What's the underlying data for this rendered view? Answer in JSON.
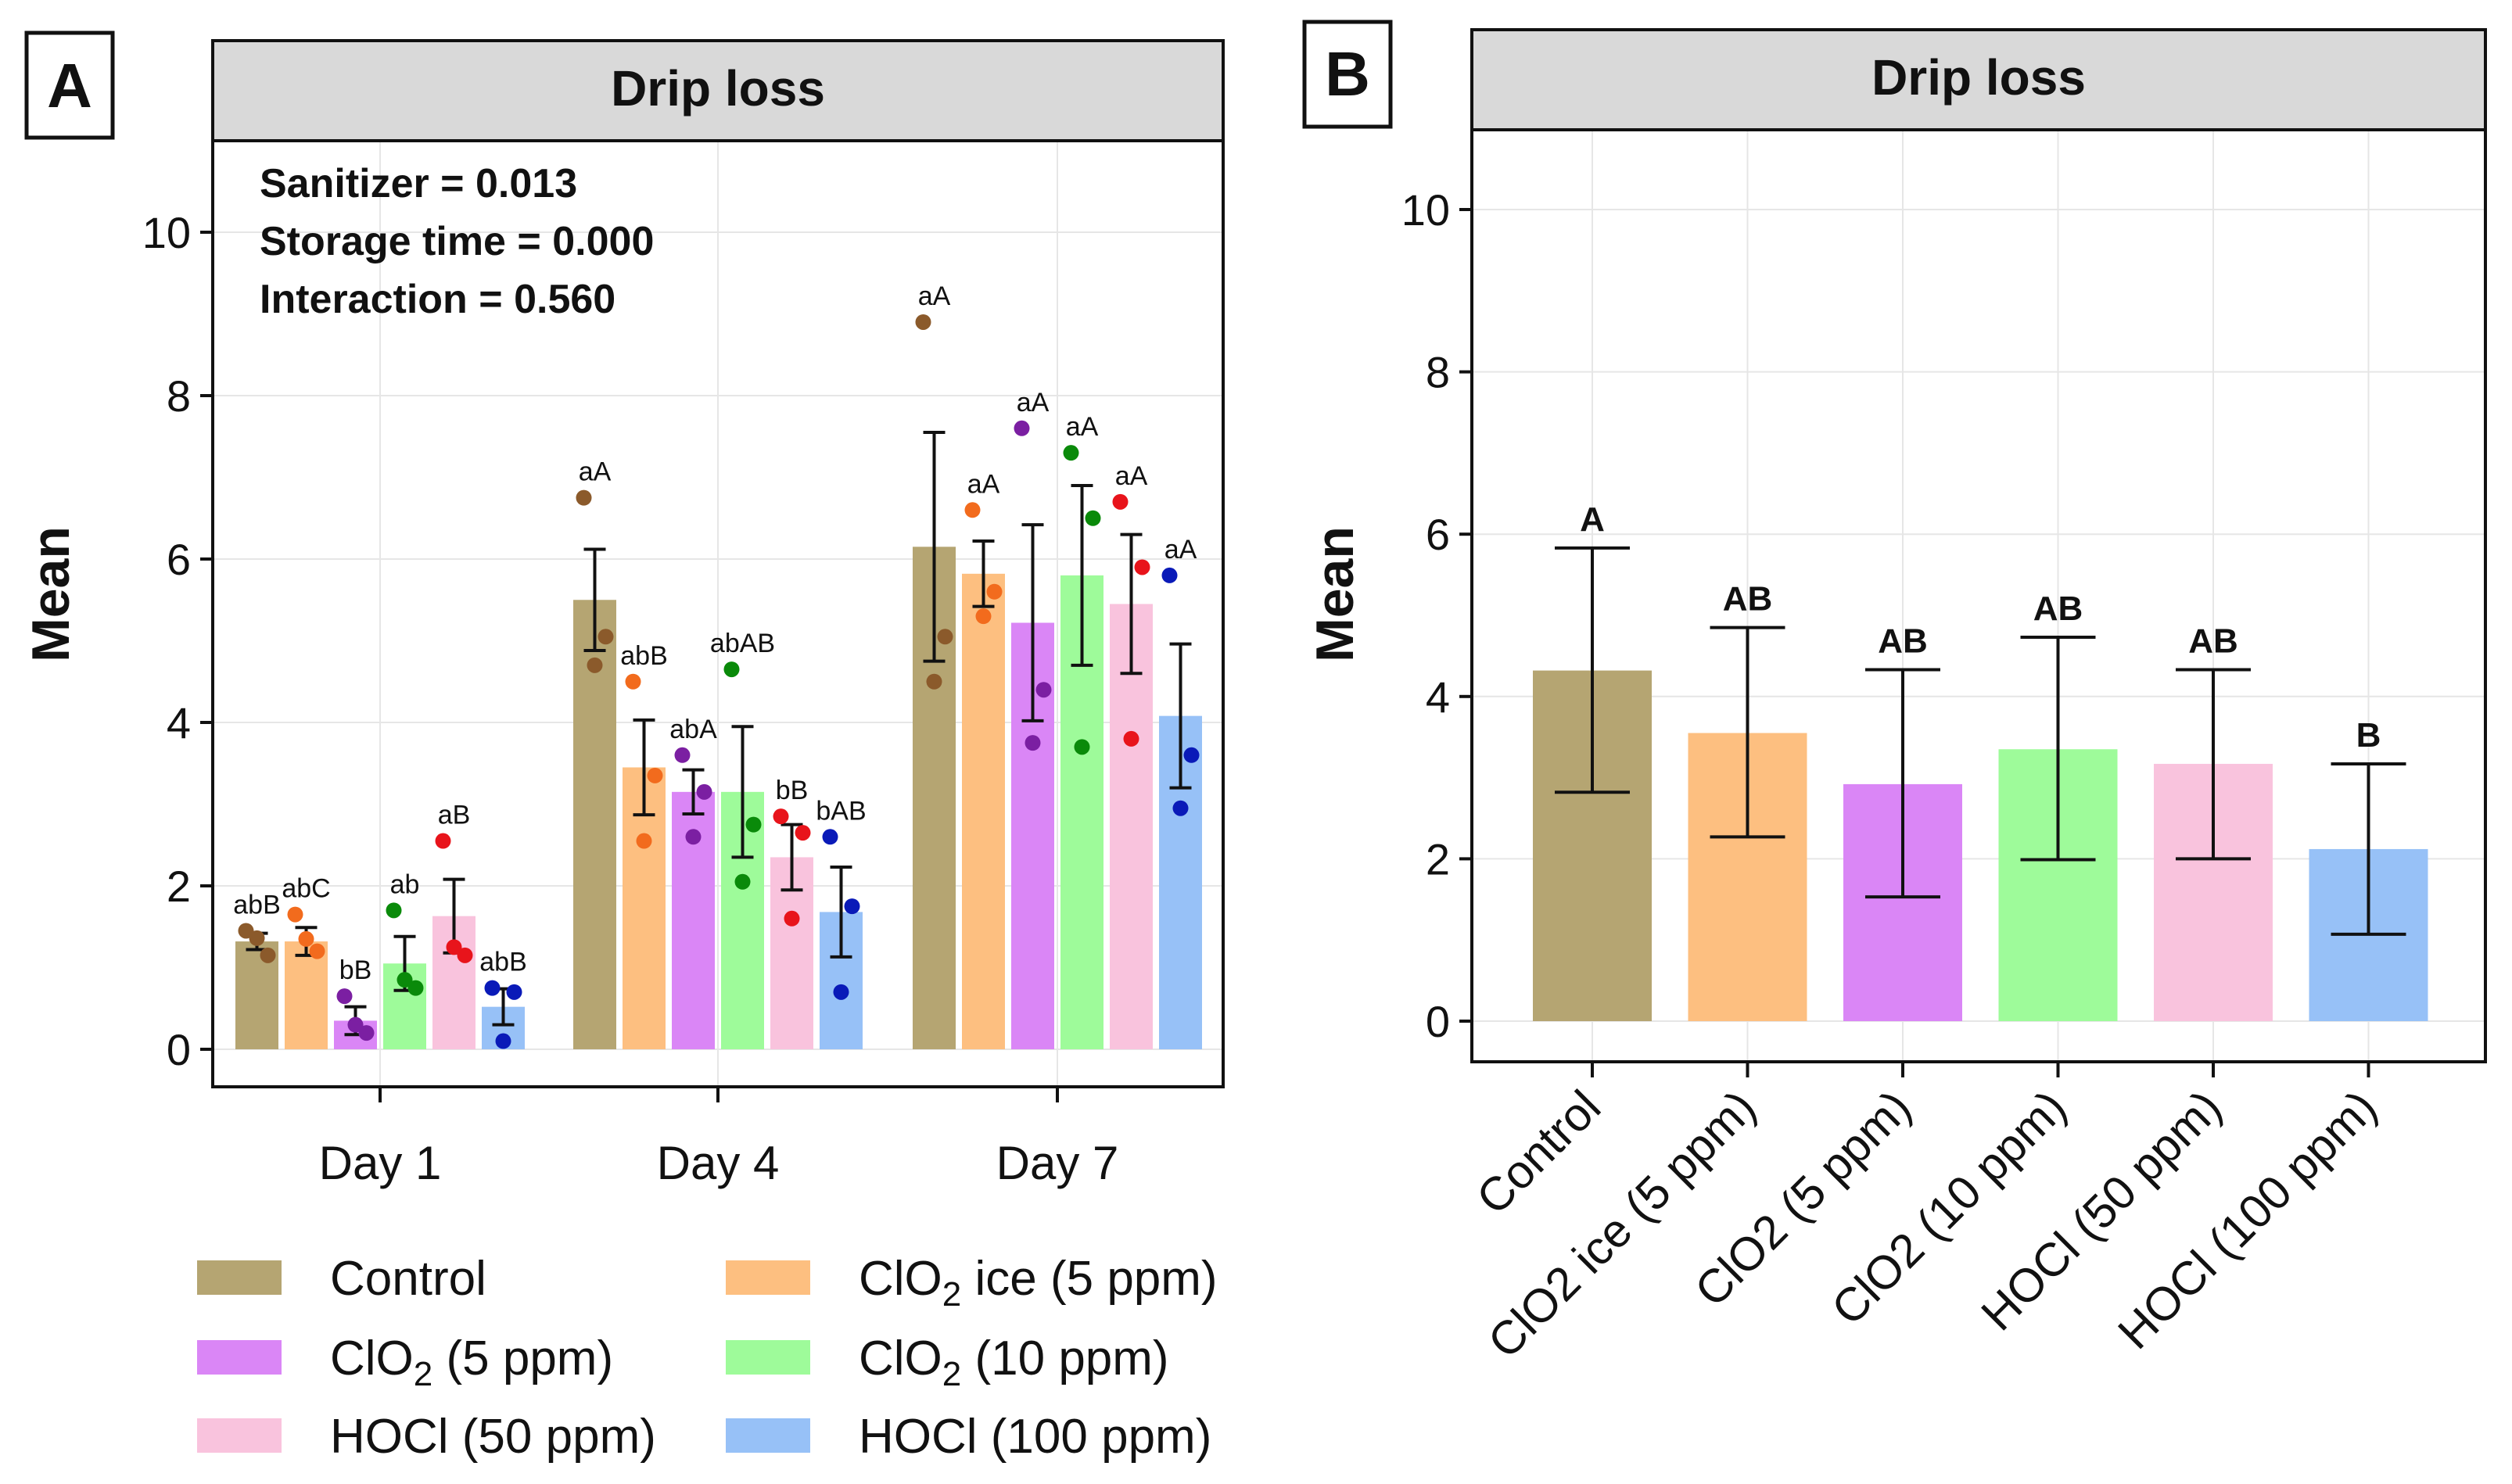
{
  "panels": {
    "A": {
      "letter": "A",
      "strip_title": "Drip loss",
      "stats": [
        "Sanitizer = 0.013",
        "Storage time = 0.000",
        "Interaction = 0.560"
      ]
    },
    "B": {
      "letter": "B",
      "strip_title": "Drip loss"
    }
  },
  "legend": [
    {
      "pre": "Control",
      "sub": "",
      "post": "",
      "color": "#B5A572"
    },
    {
      "pre": "ClO",
      "sub": "2",
      "post": " ice (5 ppm)",
      "color": "#FDBF80"
    },
    {
      "pre": "ClO",
      "sub": "2",
      "post": " (5 ppm)",
      "color": "#DA86F6"
    },
    {
      "pre": "ClO",
      "sub": "2",
      "post": " (10 ppm)",
      "color": "#9EFB9A"
    },
    {
      "pre": "HOCl (50 ppm)",
      "sub": "",
      "post": "",
      "color": "#F9C3DD"
    },
    {
      "pre": "HOCl (100 ppm)",
      "sub": "",
      "post": "",
      "color": "#97C1F7"
    }
  ],
  "chart_data": [
    {
      "type": "bar",
      "panel": "A",
      "title": "Drip loss",
      "xlabel": "",
      "ylabel": "Mean",
      "ylim": [
        -0.5,
        11
      ],
      "yticks": [
        0,
        2,
        4,
        6,
        8,
        10
      ],
      "grid": true,
      "categories": [
        "Day 1",
        "Day 4",
        "Day 7"
      ],
      "series": [
        {
          "name": "Control",
          "color": "#B5A572",
          "point_color": "#8B5A2B",
          "values": [
            1.32,
            5.5,
            6.15
          ],
          "se": [
            0.1,
            0.62,
            1.4
          ],
          "letters": [
            "abB",
            "aA",
            "aA"
          ],
          "points": [
            [
              1.45,
              1.15,
              1.36
            ],
            [
              6.75,
              5.05,
              4.7
            ],
            [
              8.9,
              5.05,
              4.5
            ]
          ]
        },
        {
          "name": "ClO2 ice (5 ppm)",
          "color": "#FDBF80",
          "point_color": "#F26B1D",
          "values": [
            1.32,
            3.45,
            5.82
          ],
          "se": [
            0.17,
            0.58,
            0.4
          ],
          "letters": [
            "abC",
            "abB",
            "aA"
          ],
          "points": [
            [
              1.65,
              1.2,
              1.35
            ],
            [
              4.5,
              3.35,
              2.55
            ],
            [
              6.6,
              5.6,
              5.3
            ]
          ]
        },
        {
          "name": "ClO2 (5 ppm)",
          "color": "#DA86F6",
          "point_color": "#7B1FA2",
          "values": [
            0.35,
            3.15,
            5.22
          ],
          "se": [
            0.17,
            0.27,
            1.2
          ],
          "letters": [
            "bB",
            "abA",
            "aA"
          ],
          "points": [
            [
              0.65,
              0.2,
              0.3
            ],
            [
              3.6,
              3.15,
              2.6
            ],
            [
              7.6,
              4.4,
              3.75
            ]
          ]
        },
        {
          "name": "ClO2 (10 ppm)",
          "color": "#9EFB9A",
          "point_color": "#0A8A0A",
          "values": [
            1.05,
            3.15,
            5.8
          ],
          "se": [
            0.33,
            0.8,
            1.1
          ],
          "letters": [
            "ab",
            "abAB",
            "aA"
          ],
          "points": [
            [
              1.7,
              0.75,
              0.85
            ],
            [
              4.65,
              2.75,
              2.05
            ],
            [
              7.3,
              6.5,
              3.7
            ]
          ]
        },
        {
          "name": "HOCl (50 ppm)",
          "color": "#F9C3DD",
          "point_color": "#E8141B",
          "values": [
            1.63,
            2.35,
            5.45
          ],
          "se": [
            0.45,
            0.4,
            0.85
          ],
          "letters": [
            "aB",
            "bB",
            "aA"
          ],
          "points": [
            [
              2.55,
              1.15,
              1.25
            ],
            [
              2.85,
              2.65,
              1.6
            ],
            [
              6.7,
              5.9,
              3.8
            ]
          ]
        },
        {
          "name": "HOCl (100 ppm)",
          "color": "#97C1F7",
          "point_color": "#0A1AB8",
          "values": [
            0.52,
            1.68,
            4.08
          ],
          "se": [
            0.22,
            0.55,
            0.88
          ],
          "letters": [
            "abB",
            "bAB",
            "aA"
          ],
          "points": [
            [
              0.75,
              0.7,
              0.1
            ],
            [
              2.6,
              1.75,
              0.7
            ],
            [
              5.8,
              3.6,
              2.95
            ]
          ]
        }
      ]
    },
    {
      "type": "bar",
      "panel": "B",
      "title": "Drip loss",
      "xlabel": "",
      "ylabel": "Mean",
      "ylim": [
        -0.5,
        11
      ],
      "yticks": [
        0,
        2,
        4,
        6,
        8,
        10
      ],
      "grid": true,
      "categories": [
        "Control",
        "ClO2 ice (5 ppm)",
        "ClO2 (5 ppm)",
        "ClO2 (10 ppm)",
        "HOCl (50 ppm)",
        "HOCl (100 ppm)"
      ],
      "colors": [
        "#B5A572",
        "#FDBF80",
        "#DA86F6",
        "#9EFB9A",
        "#F9C3DD",
        "#97C1F7"
      ],
      "values": [
        4.32,
        3.55,
        2.92,
        3.35,
        3.17,
        2.12
      ],
      "err_low": [
        2.82,
        2.27,
        1.53,
        1.99,
        2.0,
        1.07
      ],
      "err_high": [
        5.83,
        4.85,
        4.33,
        4.73,
        4.33,
        3.17
      ],
      "letters": [
        "A",
        "AB",
        "AB",
        "AB",
        "AB",
        "B"
      ]
    }
  ]
}
